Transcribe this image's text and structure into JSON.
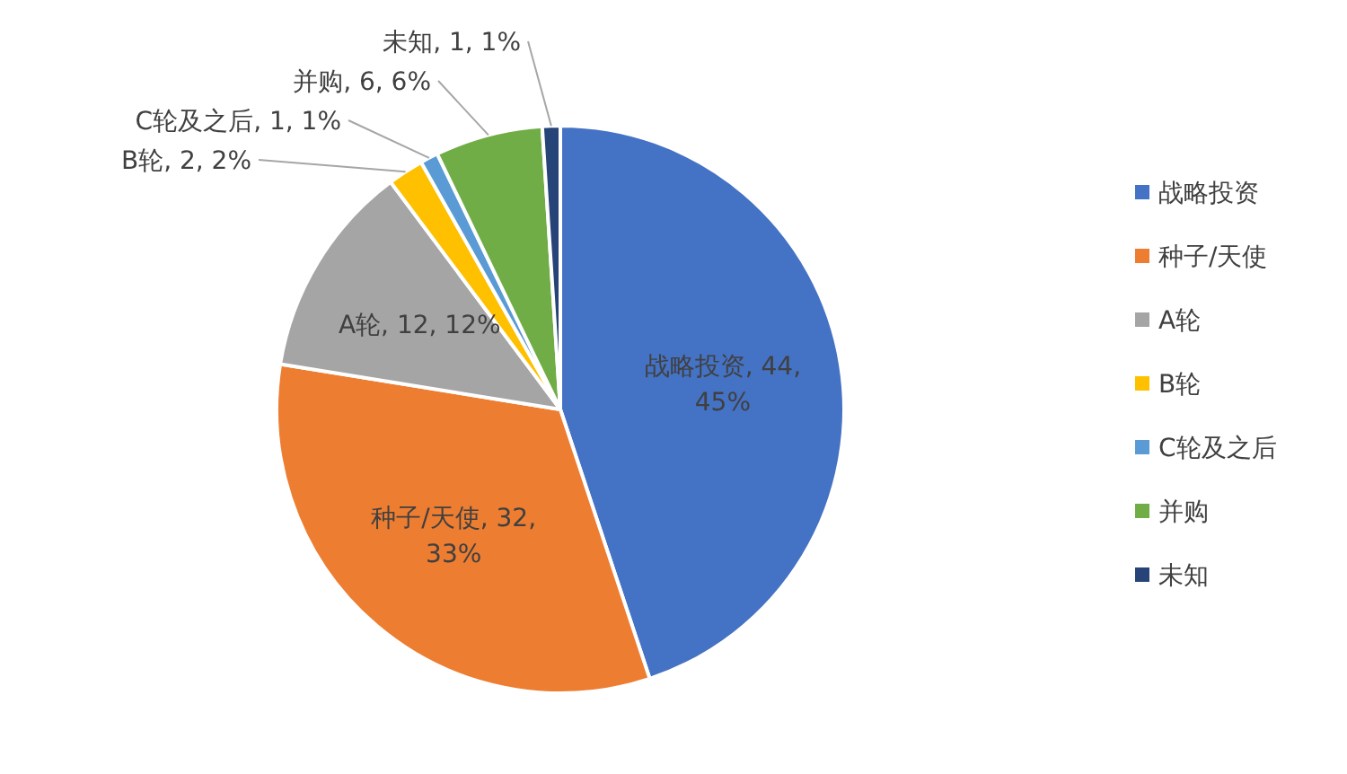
{
  "chart_data": {
    "type": "pie",
    "categories": [
      "战略投资",
      "种子/天使",
      "A轮",
      "B轮",
      "C轮及之后",
      "并购",
      "未知"
    ],
    "values": [
      44,
      32,
      12,
      2,
      1,
      6,
      1
    ],
    "colors": [
      "#4472c4",
      "#ed7d31",
      "#a5a5a5",
      "#ffc000",
      "#5b9bd5",
      "#70ad47",
      "#264478"
    ],
    "value_labels": [
      "战略投资, 44, 45%",
      "种子/天使, 32, 33%",
      "A轮, 12, 12%",
      "B轮, 2, 2%",
      "C轮及之后, 1, 1%",
      "并购, 6, 6%",
      "未知, 1, 1%"
    ],
    "legend": "right"
  }
}
